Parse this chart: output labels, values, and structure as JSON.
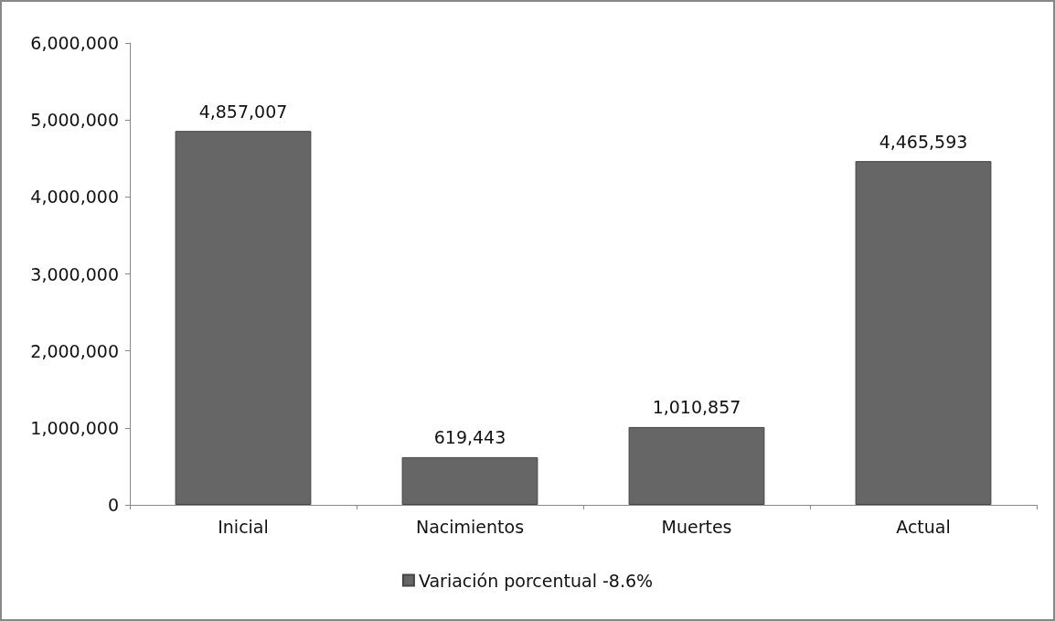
{
  "chart_data": {
    "type": "bar",
    "categories": [
      "Inicial",
      "Nacimientos",
      "Muertes",
      "Actual"
    ],
    "series": [
      {
        "name": "Variación porcentual -8.6%",
        "color": "#666666",
        "values": [
          4857007,
          619443,
          1010857,
          4465593
        ],
        "value_labels": [
          "4,857,007",
          "619,443",
          "1,010,857",
          "4,465,593"
        ]
      }
    ],
    "ylim": [
      0,
      6000000
    ],
    "yticks": [
      0,
      {
        "value": 1000000,
        "label": "1,000,000"
      },
      {
        "value": 2000000,
        "label": "2,000,000"
      },
      {
        "value": 3000000,
        "label": "3,000,000"
      },
      {
        "value": 4000000,
        "label": "4,000,000"
      },
      {
        "value": 5000000,
        "label": "5,000,000"
      },
      {
        "value": 6000000,
        "label": "6,000,000"
      }
    ],
    "grid": false,
    "legend": "bottom"
  }
}
